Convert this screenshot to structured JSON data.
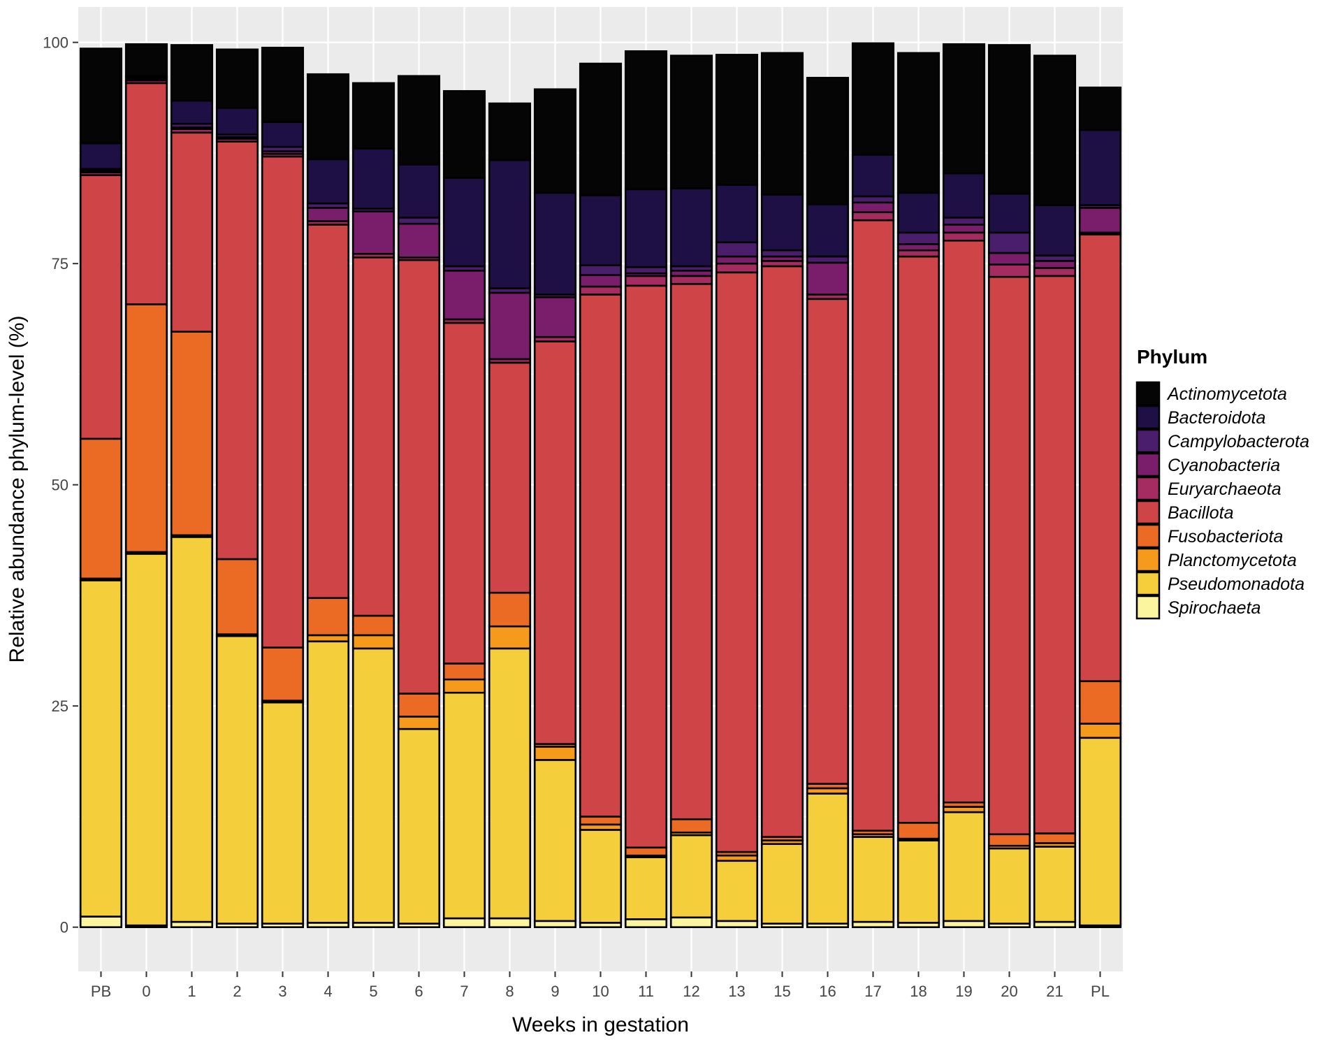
{
  "chart_data": {
    "type": "stacked-bar",
    "title": "",
    "xlabel": "Weeks in gestation",
    "ylabel": "Relative abundance phylum-level (%)",
    "ylim": [
      -5,
      104
    ],
    "yticks": [
      0,
      25,
      50,
      75,
      100
    ],
    "grid": true,
    "legend_title": "Phylum",
    "legend_position": "right",
    "categories": [
      "PB",
      "0",
      "1",
      "2",
      "3",
      "4",
      "5",
      "6",
      "7",
      "8",
      "9",
      "10",
      "11",
      "12",
      "13",
      "15",
      "16",
      "17",
      "18",
      "19",
      "20",
      "21",
      "PL"
    ],
    "series": [
      {
        "name": "Spirochaeta",
        "color": "#FCF5A0",
        "values": [
          1.2,
          0.2,
          0.6,
          0.4,
          0.4,
          0.5,
          0.5,
          0.4,
          1.0,
          1.0,
          0.7,
          0.5,
          0.9,
          1.1,
          0.7,
          0.4,
          0.4,
          0.6,
          0.5,
          0.7,
          0.4,
          0.6,
          0.2
        ]
      },
      {
        "name": "Pseudomonadota",
        "color": "#F5CE3C",
        "values": [
          38.0,
          42.0,
          43.5,
          32.5,
          25.0,
          31.8,
          31.0,
          22.0,
          25.5,
          30.5,
          18.2,
          10.5,
          7.0,
          9.3,
          6.8,
          9.0,
          14.7,
          9.6,
          9.3,
          12.3,
          8.5,
          8.5,
          21.2
        ]
      },
      {
        "name": "Planctomycetota",
        "color": "#F69A1C",
        "values": [
          0.2,
          0.2,
          0.2,
          0.2,
          0.2,
          0.7,
          1.5,
          1.4,
          1.5,
          2.5,
          1.5,
          0.6,
          0.2,
          0.3,
          0.6,
          0.4,
          0.6,
          0.3,
          0.2,
          0.6,
          0.3,
          0.4,
          1.6
        ]
      },
      {
        "name": "Fusobacteriota",
        "color": "#EC6B24",
        "values": [
          15.8,
          28.0,
          23.0,
          8.5,
          6.0,
          4.2,
          2.2,
          2.6,
          1.8,
          3.8,
          0.3,
          0.9,
          0.9,
          1.5,
          0.4,
          0.4,
          0.5,
          0.4,
          1.8,
          0.5,
          1.3,
          1.1,
          4.8
        ]
      },
      {
        "name": "Bacillota",
        "color": "#CF4446",
        "values": [
          29.8,
          25.0,
          22.5,
          47.2,
          55.5,
          42.2,
          40.5,
          49.0,
          38.5,
          26.0,
          45.5,
          59.0,
          63.5,
          60.5,
          65.5,
          64.5,
          54.8,
          69.0,
          64.0,
          63.5,
          63.0,
          63.0,
          50.5
        ]
      },
      {
        "name": "Euryarchaeota",
        "color": "#A52C60",
        "values": [
          0.3,
          0.3,
          0.4,
          0.3,
          0.3,
          0.4,
          0.4,
          0.3,
          0.4,
          0.4,
          0.5,
          0.9,
          1.1,
          0.9,
          1.0,
          0.6,
          0.5,
          0.9,
          0.7,
          0.9,
          1.4,
          0.9,
          0.2
        ]
      },
      {
        "name": "Cyanobacteria",
        "color": "#7A1E6B",
        "values": [
          0.2,
          0.2,
          0.2,
          0.2,
          0.3,
          1.5,
          4.8,
          3.8,
          5.5,
          7.5,
          4.5,
          1.3,
          0.3,
          0.6,
          0.8,
          0.5,
          3.6,
          1.1,
          0.7,
          0.9,
          1.3,
          0.8,
          2.8
        ]
      },
      {
        "name": "Campylobacterota",
        "color": "#4A1E6A",
        "values": [
          0.2,
          0.2,
          0.4,
          0.3,
          0.5,
          0.5,
          0.3,
          0.7,
          0.5,
          0.5,
          0.3,
          1.1,
          0.7,
          0.5,
          1.6,
          0.7,
          0.7,
          0.7,
          1.3,
          0.8,
          2.3,
          0.6,
          0.3
        ]
      },
      {
        "name": "Bacteroidota",
        "color": "#1E0F44",
        "values": [
          2.9,
          0.1,
          2.6,
          3.0,
          2.8,
          5.0,
          6.8,
          6.0,
          10.0,
          14.5,
          11.5,
          7.9,
          8.8,
          8.8,
          6.5,
          6.3,
          5.9,
          4.7,
          4.5,
          5.0,
          4.4,
          5.7,
          8.5
        ]
      },
      {
        "name": "Actinomycetota",
        "color": "#050505",
        "values": [
          10.7,
          3.6,
          6.3,
          6.6,
          8.4,
          9.6,
          7.4,
          10.0,
          9.8,
          6.4,
          11.7,
          14.9,
          15.6,
          15.0,
          14.7,
          16.0,
          14.3,
          12.6,
          15.8,
          14.6,
          16.8,
          16.9,
          4.8
        ]
      }
    ]
  }
}
